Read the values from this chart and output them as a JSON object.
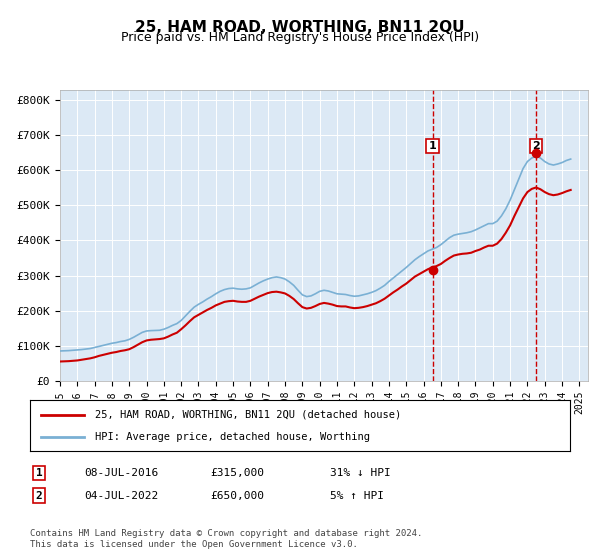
{
  "title": "25, HAM ROAD, WORTHING, BN11 2QU",
  "subtitle": "Price paid vs. HM Land Registry's House Price Index (HPI)",
  "ylabel_ticks": [
    "£0",
    "£100K",
    "£200K",
    "£300K",
    "£400K",
    "£500K",
    "£600K",
    "£700K",
    "£800K"
  ],
  "ytick_vals": [
    0,
    100000,
    200000,
    300000,
    400000,
    500000,
    600000,
    700000,
    800000
  ],
  "ylim": [
    0,
    830000
  ],
  "xlim_start": 1995.0,
  "xlim_end": 2025.5,
  "background_color": "#dce9f5",
  "plot_bg_color": "#dce9f5",
  "hpi_color": "#7ab0d4",
  "price_color": "#cc0000",
  "dashed_line_color": "#cc0000",
  "marker1_x": 2016.52,
  "marker1_y": 315000,
  "marker1_label": "1",
  "marker2_x": 2022.5,
  "marker2_y": 650000,
  "marker2_label": "2",
  "legend_line1": "25, HAM ROAD, WORTHING, BN11 2QU (detached house)",
  "legend_line2": "HPI: Average price, detached house, Worthing",
  "table_row1": [
    "1",
    "08-JUL-2016",
    "£315,000",
    "31% ↓ HPI"
  ],
  "table_row2": [
    "2",
    "04-JUL-2022",
    "£650,000",
    "5% ↑ HPI"
  ],
  "footer": "Contains HM Land Registry data © Crown copyright and database right 2024.\nThis data is licensed under the Open Government Licence v3.0.",
  "hpi_data_x": [
    1995.0,
    1995.25,
    1995.5,
    1995.75,
    1996.0,
    1996.25,
    1996.5,
    1996.75,
    1997.0,
    1997.25,
    1997.5,
    1997.75,
    1998.0,
    1998.25,
    1998.5,
    1998.75,
    1999.0,
    1999.25,
    1999.5,
    1999.75,
    2000.0,
    2000.25,
    2000.5,
    2000.75,
    2001.0,
    2001.25,
    2001.5,
    2001.75,
    2002.0,
    2002.25,
    2002.5,
    2002.75,
    2003.0,
    2003.25,
    2003.5,
    2003.75,
    2004.0,
    2004.25,
    2004.5,
    2004.75,
    2005.0,
    2005.25,
    2005.5,
    2005.75,
    2006.0,
    2006.25,
    2006.5,
    2006.75,
    2007.0,
    2007.25,
    2007.5,
    2007.75,
    2008.0,
    2008.25,
    2008.5,
    2008.75,
    2009.0,
    2009.25,
    2009.5,
    2009.75,
    2010.0,
    2010.25,
    2010.5,
    2010.75,
    2011.0,
    2011.25,
    2011.5,
    2011.75,
    2012.0,
    2012.25,
    2012.5,
    2012.75,
    2013.0,
    2013.25,
    2013.5,
    2013.75,
    2014.0,
    2014.25,
    2014.5,
    2014.75,
    2015.0,
    2015.25,
    2015.5,
    2015.75,
    2016.0,
    2016.25,
    2016.5,
    2016.75,
    2017.0,
    2017.25,
    2017.5,
    2017.75,
    2018.0,
    2018.25,
    2018.5,
    2018.75,
    2019.0,
    2019.25,
    2019.5,
    2019.75,
    2020.0,
    2020.25,
    2020.5,
    2020.75,
    2021.0,
    2021.25,
    2021.5,
    2021.75,
    2022.0,
    2022.25,
    2022.5,
    2022.75,
    2023.0,
    2023.25,
    2023.5,
    2023.75,
    2024.0,
    2024.25,
    2024.5
  ],
  "hpi_data_y": [
    85000,
    85500,
    86000,
    87000,
    88000,
    89000,
    90500,
    92000,
    95000,
    98000,
    101000,
    104000,
    107000,
    109000,
    112000,
    114000,
    118000,
    124000,
    131000,
    138000,
    142000,
    143000,
    143500,
    144000,
    147000,
    152000,
    158000,
    163000,
    172000,
    185000,
    198000,
    210000,
    218000,
    225000,
    233000,
    240000,
    248000,
    255000,
    260000,
    263000,
    264000,
    262000,
    261000,
    262000,
    265000,
    272000,
    279000,
    285000,
    290000,
    294000,
    296000,
    294000,
    290000,
    282000,
    272000,
    258000,
    245000,
    240000,
    242000,
    248000,
    255000,
    258000,
    256000,
    252000,
    248000,
    247000,
    246000,
    243000,
    241000,
    242000,
    245000,
    248000,
    252000,
    257000,
    264000,
    272000,
    283000,
    293000,
    303000,
    313000,
    323000,
    334000,
    345000,
    354000,
    362000,
    370000,
    375000,
    380000,
    388000,
    398000,
    408000,
    415000,
    418000,
    420000,
    422000,
    425000,
    430000,
    436000,
    442000,
    448000,
    448000,
    455000,
    470000,
    490000,
    515000,
    545000,
    575000,
    605000,
    625000,
    635000,
    640000,
    635000,
    625000,
    618000,
    615000,
    618000,
    622000,
    628000,
    632000
  ],
  "price_data_x": [
    1995.0,
    1995.25,
    1995.5,
    1995.75,
    1996.0,
    1996.25,
    1996.5,
    1996.75,
    1997.0,
    1997.25,
    1997.5,
    1997.75,
    1998.0,
    1998.25,
    1998.5,
    1998.75,
    1999.0,
    1999.25,
    1999.5,
    1999.75,
    2000.0,
    2000.25,
    2000.5,
    2000.75,
    2001.0,
    2001.25,
    2001.5,
    2001.75,
    2002.0,
    2002.25,
    2002.5,
    2002.75,
    2003.0,
    2003.25,
    2003.5,
    2003.75,
    2004.0,
    2004.25,
    2004.5,
    2004.75,
    2005.0,
    2005.25,
    2005.5,
    2005.75,
    2006.0,
    2006.25,
    2006.5,
    2006.75,
    2007.0,
    2007.25,
    2007.5,
    2007.75,
    2008.0,
    2008.25,
    2008.5,
    2008.75,
    2009.0,
    2009.25,
    2009.5,
    2009.75,
    2010.0,
    2010.25,
    2010.5,
    2010.75,
    2011.0,
    2011.25,
    2011.5,
    2011.75,
    2012.0,
    2012.25,
    2012.5,
    2012.75,
    2013.0,
    2013.25,
    2013.5,
    2013.75,
    2014.0,
    2014.25,
    2014.5,
    2014.75,
    2015.0,
    2015.25,
    2015.5,
    2015.75,
    2016.0,
    2016.25,
    2016.5,
    2016.75,
    2017.0,
    2017.25,
    2017.5,
    2017.75,
    2018.0,
    2018.25,
    2018.5,
    2018.75,
    2019.0,
    2019.25,
    2019.5,
    2019.75,
    2020.0,
    2020.25,
    2020.5,
    2020.75,
    2021.0,
    2021.25,
    2021.5,
    2021.75,
    2022.0,
    2022.25,
    2022.5,
    2022.75,
    2023.0,
    2023.25,
    2023.5,
    2023.75,
    2024.0,
    2024.25,
    2024.5
  ],
  "price_data_y": [
    55000,
    55500,
    56000,
    57000,
    58000,
    60000,
    62000,
    64000,
    67000,
    71000,
    74000,
    77000,
    80000,
    82000,
    85000,
    87000,
    90000,
    96000,
    103000,
    110000,
    115000,
    117000,
    118000,
    119000,
    121000,
    126000,
    132000,
    137000,
    147000,
    158000,
    170000,
    181000,
    188000,
    195000,
    202000,
    208000,
    215000,
    220000,
    225000,
    227000,
    228000,
    226000,
    225000,
    225000,
    228000,
    234000,
    240000,
    245000,
    250000,
    253000,
    254000,
    252000,
    249000,
    242000,
    233000,
    221000,
    210000,
    206000,
    208000,
    213000,
    219000,
    222000,
    220000,
    217000,
    213000,
    212000,
    212000,
    209000,
    207000,
    208000,
    210000,
    213000,
    217000,
    221000,
    227000,
    234000,
    243000,
    252000,
    260000,
    269000,
    277000,
    287000,
    297000,
    304000,
    311000,
    318000,
    323000,
    327000,
    333000,
    342000,
    350000,
    357000,
    360000,
    362000,
    363000,
    365000,
    370000,
    374000,
    380000,
    385000,
    385000,
    391000,
    404000,
    422000,
    443000,
    470000,
    495000,
    520000,
    538000,
    547000,
    551000,
    546000,
    538000,
    532000,
    529000,
    531000,
    535000,
    540000,
    544000
  ]
}
